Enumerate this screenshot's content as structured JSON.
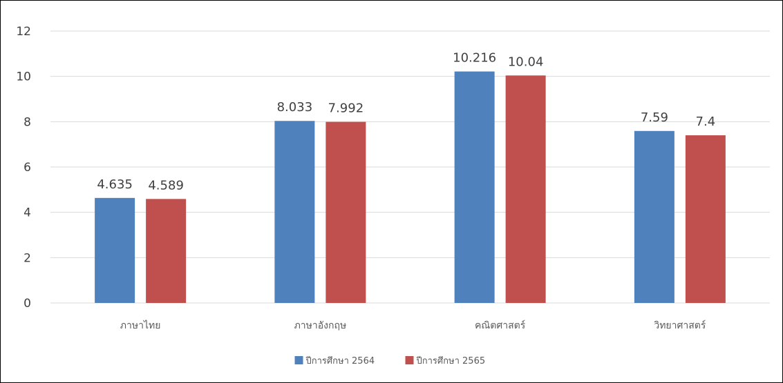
{
  "chart_data": {
    "type": "bar",
    "categories": [
      "ภาษาไทย",
      "ภาษาอังกฤษ",
      "คณิตศาสตร์",
      "วิทยาศาสตร์"
    ],
    "series": [
      {
        "name": "ปีการศึกษา 2564",
        "values": [
          4.635,
          8.033,
          10.216,
          7.59
        ],
        "labels": [
          "4.635",
          "8.033",
          "10.216",
          "7.59"
        ],
        "color": "#4f81bd"
      },
      {
        "name": "ปีการศึกษา 2565",
        "values": [
          4.589,
          7.992,
          10.04,
          7.4
        ],
        "labels": [
          "4.589",
          "7.992",
          "10.04",
          "7.4"
        ],
        "color": "#c0504d"
      }
    ],
    "yticks": [
      0,
      2,
      4,
      6,
      8,
      10,
      12
    ],
    "ylim": [
      0,
      12
    ],
    "grid": true,
    "legend_position": "bottom"
  }
}
